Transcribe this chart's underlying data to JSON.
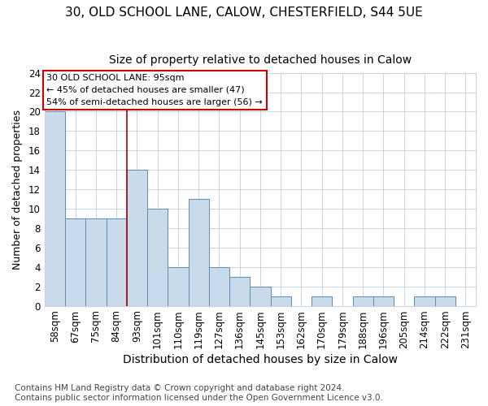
{
  "title1": "30, OLD SCHOOL LANE, CALOW, CHESTERFIELD, S44 5UE",
  "title2": "Size of property relative to detached houses in Calow",
  "xlabel": "Distribution of detached houses by size in Calow",
  "ylabel": "Number of detached properties",
  "categories": [
    "58sqm",
    "67sqm",
    "75sqm",
    "84sqm",
    "93sqm",
    "101sqm",
    "110sqm",
    "119sqm",
    "127sqm",
    "136sqm",
    "145sqm",
    "153sqm",
    "162sqm",
    "170sqm",
    "179sqm",
    "188sqm",
    "196sqm",
    "205sqm",
    "214sqm",
    "222sqm",
    "231sqm"
  ],
  "values": [
    20,
    9,
    9,
    9,
    14,
    10,
    4,
    11,
    4,
    3,
    2,
    1,
    0,
    1,
    0,
    1,
    1,
    0,
    1,
    1,
    0
  ],
  "bar_color": "#c9daea",
  "bar_edge_color": "#5b8db8",
  "grid_color": "#c8d4e3",
  "vline_index": 4,
  "vline_color": "#aa0000",
  "annotation_lines": [
    "30 OLD SCHOOL LANE: 95sqm",
    "← 45% of detached houses are smaller (47)",
    "54% of semi-detached houses are larger (56) →"
  ],
  "annotation_box_edge": "#cc0000",
  "ylim": [
    0,
    24
  ],
  "yticks": [
    0,
    2,
    4,
    6,
    8,
    10,
    12,
    14,
    16,
    18,
    20,
    22,
    24
  ],
  "footer": "Contains HM Land Registry data © Crown copyright and database right 2024.\nContains public sector information licensed under the Open Government Licence v3.0.",
  "title1_fontsize": 11,
  "title2_fontsize": 10,
  "xlabel_fontsize": 10,
  "ylabel_fontsize": 9,
  "tick_fontsize": 8.5,
  "footer_fontsize": 7.5
}
